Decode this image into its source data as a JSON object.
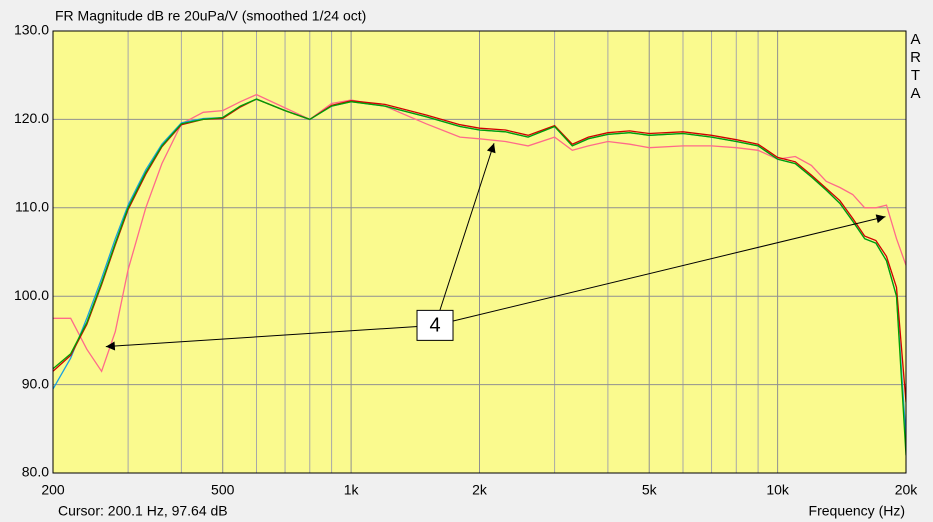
{
  "chart_data": {
    "type": "line",
    "title": "FR Magnitude dB re 20uPa/V (smoothed 1/24 oct)",
    "side_label": "ARTA",
    "cursor_text": "Cursor: 200.1 Hz, 97.64 dB",
    "x_label": "Frequency (Hz)",
    "x_log": true,
    "grid": true,
    "xlim": [
      200,
      20000
    ],
    "ylim": [
      80,
      130
    ],
    "xticks": [
      200,
      500,
      {
        "value": 1000,
        "label": "1k"
      },
      {
        "value": 2000,
        "label": "2k"
      },
      {
        "value": 5000,
        "label": "5k"
      },
      {
        "value": 10000,
        "label": "10k"
      },
      {
        "value": 20000,
        "label": "20k"
      }
    ],
    "xminor_ticks": [
      300,
      400,
      600,
      700,
      800,
      900,
      3000,
      4000,
      6000,
      7000,
      8000,
      9000
    ],
    "yticks": [
      {
        "value": 80,
        "label": "80.0"
      },
      {
        "value": 90,
        "label": "90.0"
      },
      {
        "value": 100,
        "label": "100.0"
      },
      {
        "value": 110,
        "label": "110.0"
      },
      {
        "value": 120,
        "label": "120.0"
      },
      {
        "value": 130,
        "label": "130.0"
      }
    ],
    "x": [
      200,
      220,
      240,
      260,
      280,
      300,
      330,
      360,
      400,
      450,
      500,
      550,
      600,
      700,
      800,
      900,
      1000,
      1200,
      1500,
      1800,
      2000,
      2300,
      2600,
      3000,
      3300,
      3600,
      4000,
      4500,
      5000,
      6000,
      7000,
      8000,
      9000,
      10000,
      11000,
      12000,
      13000,
      14000,
      15000,
      16000,
      17000,
      18000,
      19000,
      20000
    ],
    "series": [
      {
        "color": "#ff6a8a",
        "values": [
          97.5,
          97.5,
          94,
          91.5,
          96,
          103,
          110,
          115,
          119.5,
          120.8,
          121,
          122,
          122.8,
          121.3,
          120,
          121.8,
          122.2,
          121.5,
          119.5,
          118,
          117.8,
          117.5,
          117,
          118,
          116.5,
          117,
          117.5,
          117.2,
          116.8,
          117,
          117,
          116.8,
          116.5,
          115.5,
          115.8,
          114.8,
          113,
          112.3,
          111.5,
          110,
          110,
          110.3,
          106.5,
          103.5
        ]
      },
      {
        "color": "#1aa0e0",
        "values": [
          89.5,
          93,
          97.5,
          102,
          106.5,
          110.3,
          114.3,
          117.2,
          119.6,
          120.1,
          120.2,
          121.5,
          122.3,
          121,
          120,
          121.5,
          122,
          121.5,
          120.3,
          119.2,
          118.8,
          118.6,
          118,
          119.2,
          117,
          117.8,
          118.3,
          118.5,
          118.2,
          118.4,
          118,
          117.5,
          117,
          115.5,
          115,
          113.5,
          112,
          110.5,
          108.5,
          106.5,
          106,
          104,
          100,
          84
        ]
      },
      {
        "color": "#d00000",
        "values": [
          91.5,
          93.3,
          96.8,
          101.3,
          105.8,
          109.8,
          113.8,
          116.9,
          119.4,
          120,
          120.1,
          121.4,
          122.3,
          121,
          120,
          121.6,
          122.1,
          121.7,
          120.5,
          119.4,
          119,
          118.8,
          118.2,
          119.3,
          117.2,
          118,
          118.5,
          118.7,
          118.4,
          118.6,
          118.2,
          117.7,
          117.2,
          115.7,
          115.2,
          113.7,
          112.2,
          110.8,
          108.8,
          106.8,
          106.3,
          104.5,
          101,
          88
        ]
      },
      {
        "color": "#00a000",
        "values": [
          91.8,
          93.5,
          97,
          101.5,
          106,
          110,
          114,
          117,
          119.5,
          120,
          120.2,
          121.5,
          122.3,
          121,
          120,
          121.5,
          122,
          121.5,
          120.3,
          119.2,
          118.8,
          118.6,
          118,
          119.2,
          117,
          117.8,
          118.3,
          118.5,
          118.2,
          118.4,
          118,
          117.5,
          117,
          115.5,
          115,
          113.5,
          112,
          110.5,
          108.5,
          106.5,
          106,
          104,
          100,
          82
        ]
      }
    ],
    "annotation": {
      "text": "4",
      "x": 1573,
      "y": 96.7,
      "arrows": [
        {
          "x": 266,
          "y": 94.3
        },
        {
          "x": 2163,
          "y": 117.3
        },
        {
          "x": 17900,
          "y": 109
        }
      ]
    }
  }
}
